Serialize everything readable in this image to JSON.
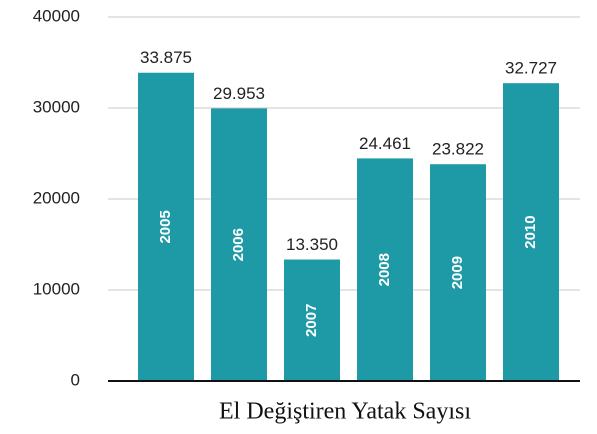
{
  "chart_data": {
    "type": "bar",
    "title": "El Değiştiren Yatak Sayısı",
    "categories": [
      "2005",
      "2006",
      "2007",
      "2008",
      "2009",
      "2010"
    ],
    "values": [
      33875,
      29953,
      13350,
      24461,
      23822,
      32727
    ],
    "value_labels": [
      "33.875",
      "29.953",
      "13.350",
      "24.461",
      "23.822",
      "32.727"
    ],
    "color": "#1e9aa6",
    "ylim": [
      0,
      40000
    ],
    "yticks": [
      0,
      10000,
      20000,
      30000,
      40000
    ],
    "grid": true
  }
}
